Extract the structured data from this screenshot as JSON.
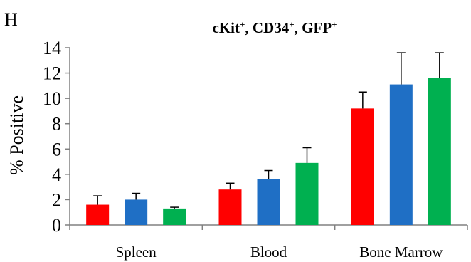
{
  "panel_label": "H",
  "chart_data": {
    "type": "bar",
    "title_parts": [
      {
        "text": "cKit",
        "sup": "+"
      },
      {
        "text": ", CD34",
        "sup": "+"
      },
      {
        "text": ", GFP",
        "sup": "+"
      }
    ],
    "title": "cKit+, CD34+, GFP+",
    "xlabel": "",
    "ylabel": "% Positive",
    "ylim": [
      0,
      14
    ],
    "yticks": [
      "0",
      "2",
      "4",
      "6",
      "8",
      "10",
      "12",
      "14"
    ],
    "categories": [
      "Spleen",
      "Blood",
      "Bone Marrow"
    ],
    "grid": false,
    "legend": "none",
    "series": [
      {
        "color": "#ff0000",
        "values": [
          1.6,
          2.8,
          9.2
        ],
        "errors": [
          0.7,
          0.5,
          1.3
        ]
      },
      {
        "color": "#1f6fc5",
        "values": [
          2.0,
          3.6,
          11.1
        ],
        "errors": [
          0.5,
          0.7,
          2.5
        ]
      },
      {
        "color": "#00b050",
        "values": [
          1.3,
          4.9,
          11.6
        ],
        "errors": [
          0.1,
          1.2,
          2.0
        ]
      }
    ]
  }
}
